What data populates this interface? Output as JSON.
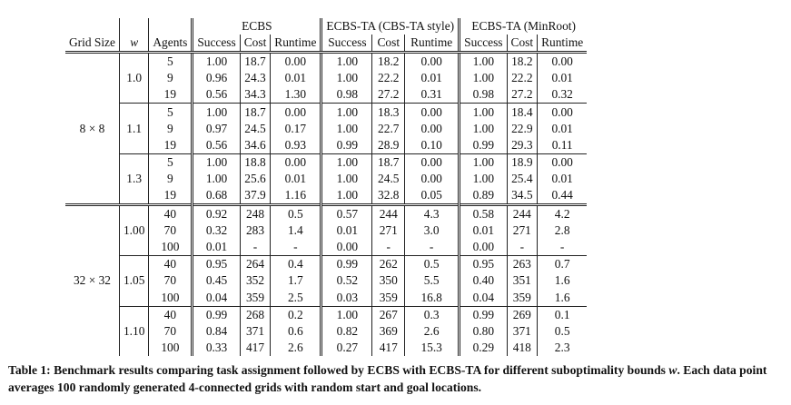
{
  "header": {
    "grid_size": "Grid Size",
    "w": "w",
    "agents": "Agents",
    "groups": [
      "ECBS",
      "ECBS-TA (CBS-TA style)",
      "ECBS-TA (MinRoot)"
    ],
    "metrics": [
      "Success",
      "Cost",
      "Runtime"
    ]
  },
  "blocks": [
    {
      "grid": "8 × 8",
      "wgroups": [
        {
          "w": "1.0",
          "rows": [
            {
              "agents": "5",
              "cells": [
                {
                  "v": "1.00",
                  "b": true
                },
                {
                  "v": "18.7",
                  "b": false
                },
                {
                  "v": "0.00",
                  "b": true
                },
                {
                  "v": "1.00",
                  "b": true
                },
                {
                  "v": "18.2",
                  "b": true
                },
                {
                  "v": "0.00",
                  "b": true
                },
                {
                  "v": "1.00",
                  "b": true
                },
                {
                  "v": "18.2",
                  "b": true
                },
                {
                  "v": "0.00",
                  "b": true
                }
              ]
            },
            {
              "agents": "9",
              "cells": [
                {
                  "v": "0.96",
                  "b": false
                },
                {
                  "v": "24.3",
                  "b": false
                },
                {
                  "v": "0.01",
                  "b": true
                },
                {
                  "v": "1.00",
                  "b": true
                },
                {
                  "v": "22.2",
                  "b": true
                },
                {
                  "v": "0.01",
                  "b": true
                },
                {
                  "v": "1.00",
                  "b": true
                },
                {
                  "v": "22.2",
                  "b": true
                },
                {
                  "v": "0.01",
                  "b": true
                }
              ]
            },
            {
              "agents": "19",
              "cells": [
                {
                  "v": "0.56",
                  "b": false
                },
                {
                  "v": "34.3",
                  "b": false
                },
                {
                  "v": "1.30",
                  "b": false
                },
                {
                  "v": "0.98",
                  "b": true
                },
                {
                  "v": "27.2",
                  "b": true
                },
                {
                  "v": "0.31",
                  "b": true
                },
                {
                  "v": "0.98",
                  "b": true
                },
                {
                  "v": "27.2",
                  "b": true
                },
                {
                  "v": "0.32",
                  "b": false
                }
              ]
            }
          ]
        },
        {
          "w": "1.1",
          "rows": [
            {
              "agents": "5",
              "cells": [
                {
                  "v": "1.00",
                  "b": true
                },
                {
                  "v": "18.7",
                  "b": false
                },
                {
                  "v": "0.00",
                  "b": true
                },
                {
                  "v": "1.00",
                  "b": true
                },
                {
                  "v": "18.3",
                  "b": true
                },
                {
                  "v": "0.00",
                  "b": true
                },
                {
                  "v": "1.00",
                  "b": true
                },
                {
                  "v": "18.4",
                  "b": false
                },
                {
                  "v": "0.00",
                  "b": true
                }
              ]
            },
            {
              "agents": "9",
              "cells": [
                {
                  "v": "0.97",
                  "b": false
                },
                {
                  "v": "24.5",
                  "b": false
                },
                {
                  "v": "0.17",
                  "b": false
                },
                {
                  "v": "1.00",
                  "b": true
                },
                {
                  "v": "22.7",
                  "b": true
                },
                {
                  "v": "0.00",
                  "b": true
                },
                {
                  "v": "1.00",
                  "b": true
                },
                {
                  "v": "22.9",
                  "b": false
                },
                {
                  "v": "0.01",
                  "b": false
                }
              ]
            },
            {
              "agents": "19",
              "cells": [
                {
                  "v": "0.56",
                  "b": false
                },
                {
                  "v": "34.6",
                  "b": false
                },
                {
                  "v": "0.93",
                  "b": false
                },
                {
                  "v": "0.99",
                  "b": true
                },
                {
                  "v": "28.9",
                  "b": true
                },
                {
                  "v": "0.10",
                  "b": true
                },
                {
                  "v": "0.99",
                  "b": true
                },
                {
                  "v": "29.3",
                  "b": false
                },
                {
                  "v": "0.11",
                  "b": false
                }
              ]
            }
          ]
        },
        {
          "w": "1.3",
          "rows": [
            {
              "agents": "5",
              "cells": [
                {
                  "v": "1.00",
                  "b": true
                },
                {
                  "v": "18.8",
                  "b": false
                },
                {
                  "v": "0.00",
                  "b": true
                },
                {
                  "v": "1.00",
                  "b": true
                },
                {
                  "v": "18.7",
                  "b": true
                },
                {
                  "v": "0.00",
                  "b": true
                },
                {
                  "v": "1.00",
                  "b": true
                },
                {
                  "v": "18.9",
                  "b": false
                },
                {
                  "v": "0.00",
                  "b": true
                }
              ]
            },
            {
              "agents": "9",
              "cells": [
                {
                  "v": "1.00",
                  "b": true
                },
                {
                  "v": "25.6",
                  "b": false
                },
                {
                  "v": "0.01",
                  "b": false
                },
                {
                  "v": "1.00",
                  "b": true
                },
                {
                  "v": "24.5",
                  "b": true
                },
                {
                  "v": "0.00",
                  "b": true
                },
                {
                  "v": "1.00",
                  "b": true
                },
                {
                  "v": "25.4",
                  "b": false
                },
                {
                  "v": "0.01",
                  "b": false
                }
              ]
            },
            {
              "agents": "19",
              "cells": [
                {
                  "v": "0.68",
                  "b": false
                },
                {
                  "v": "37.9",
                  "b": false
                },
                {
                  "v": "1.16",
                  "b": false
                },
                {
                  "v": "1.00",
                  "b": true
                },
                {
                  "v": "32.8",
                  "b": true
                },
                {
                  "v": "0.05",
                  "b": true
                },
                {
                  "v": "0.89",
                  "b": false
                },
                {
                  "v": "34.5",
                  "b": false
                },
                {
                  "v": "0.44",
                  "b": false
                }
              ]
            }
          ]
        }
      ]
    },
    {
      "grid": "32 × 32",
      "wgroups": [
        {
          "w": "1.00",
          "rows": [
            {
              "agents": "40",
              "cells": [
                {
                  "v": "0.92",
                  "b": true
                },
                {
                  "v": "248",
                  "b": false
                },
                {
                  "v": "0.5",
                  "b": true
                },
                {
                  "v": "0.57",
                  "b": false
                },
                {
                  "v": "244",
                  "b": true
                },
                {
                  "v": "4.3",
                  "b": false
                },
                {
                  "v": "0.58",
                  "b": false
                },
                {
                  "v": "244",
                  "b": true
                },
                {
                  "v": "4.2",
                  "b": false
                }
              ]
            },
            {
              "agents": "70",
              "cells": [
                {
                  "v": "0.32",
                  "b": true
                },
                {
                  "v": "283",
                  "b": false
                },
                {
                  "v": "1.4",
                  "b": true
                },
                {
                  "v": "0.01",
                  "b": false
                },
                {
                  "v": "271",
                  "b": true
                },
                {
                  "v": "3.0",
                  "b": false
                },
                {
                  "v": "0.01",
                  "b": false
                },
                {
                  "v": "271",
                  "b": true
                },
                {
                  "v": "2.8",
                  "b": false
                }
              ]
            },
            {
              "agents": "100",
              "cells": [
                {
                  "v": "0.01",
                  "b": true
                },
                {
                  "v": "-",
                  "b": false
                },
                {
                  "v": "-",
                  "b": false
                },
                {
                  "v": "0.00",
                  "b": false
                },
                {
                  "v": "-",
                  "b": false
                },
                {
                  "v": "-",
                  "b": false
                },
                {
                  "v": "0.00",
                  "b": false
                },
                {
                  "v": "-",
                  "b": false
                },
                {
                  "v": "-",
                  "b": false
                }
              ]
            }
          ]
        },
        {
          "w": "1.05",
          "rows": [
            {
              "agents": "40",
              "cells": [
                {
                  "v": "0.95",
                  "b": false
                },
                {
                  "v": "264",
                  "b": false
                },
                {
                  "v": "0.4",
                  "b": true
                },
                {
                  "v": "0.99",
                  "b": true
                },
                {
                  "v": "262",
                  "b": true
                },
                {
                  "v": "0.5",
                  "b": false
                },
                {
                  "v": "0.95",
                  "b": false
                },
                {
                  "v": "263",
                  "b": false
                },
                {
                  "v": "0.7",
                  "b": false
                }
              ]
            },
            {
              "agents": "70",
              "cells": [
                {
                  "v": "0.45",
                  "b": false
                },
                {
                  "v": "352",
                  "b": false
                },
                {
                  "v": "1.7",
                  "b": false
                },
                {
                  "v": "0.52",
                  "b": true
                },
                {
                  "v": "350",
                  "b": true
                },
                {
                  "v": "5.5",
                  "b": false
                },
                {
                  "v": "0.40",
                  "b": false
                },
                {
                  "v": "351",
                  "b": false
                },
                {
                  "v": "1.6",
                  "b": true
                }
              ]
            },
            {
              "agents": "100",
              "cells": [
                {
                  "v": "0.04",
                  "b": true
                },
                {
                  "v": "359",
                  "b": true
                },
                {
                  "v": "2.5",
                  "b": false
                },
                {
                  "v": "0.03",
                  "b": false
                },
                {
                  "v": "359",
                  "b": true
                },
                {
                  "v": "16.8",
                  "b": false
                },
                {
                  "v": "0.04",
                  "b": true
                },
                {
                  "v": "359",
                  "b": true
                },
                {
                  "v": "1.6",
                  "b": true
                }
              ]
            }
          ]
        },
        {
          "w": "1.10",
          "rows": [
            {
              "agents": "40",
              "cells": [
                {
                  "v": "0.99",
                  "b": false
                },
                {
                  "v": "268",
                  "b": false
                },
                {
                  "v": "0.2",
                  "b": false
                },
                {
                  "v": "1.00",
                  "b": true
                },
                {
                  "v": "267",
                  "b": true
                },
                {
                  "v": "0.3",
                  "b": false
                },
                {
                  "v": "0.99",
                  "b": false
                },
                {
                  "v": "269",
                  "b": false
                },
                {
                  "v": "0.1",
                  "b": true
                }
              ]
            },
            {
              "agents": "70",
              "cells": [
                {
                  "v": "0.84",
                  "b": true
                },
                {
                  "v": "371",
                  "b": false
                },
                {
                  "v": "0.6",
                  "b": false
                },
                {
                  "v": "0.82",
                  "b": false
                },
                {
                  "v": "369",
                  "b": true
                },
                {
                  "v": "2.6",
                  "b": false
                },
                {
                  "v": "0.80",
                  "b": false
                },
                {
                  "v": "371",
                  "b": false
                },
                {
                  "v": "0.5",
                  "b": true
                }
              ]
            },
            {
              "agents": "100",
              "cells": [
                {
                  "v": "0.33",
                  "b": true
                },
                {
                  "v": "417",
                  "b": true
                },
                {
                  "v": "2.6",
                  "b": false
                },
                {
                  "v": "0.27",
                  "b": false
                },
                {
                  "v": "417",
                  "b": true
                },
                {
                  "v": "15.3",
                  "b": false
                },
                {
                  "v": "0.29",
                  "b": false
                },
                {
                  "v": "418",
                  "b": false
                },
                {
                  "v": "2.3",
                  "b": true
                }
              ]
            }
          ]
        }
      ]
    }
  ],
  "caption": {
    "label": "Table 1: Benchmark results comparing task assignment followed by ECBS with ECBS-TA for different suboptimality bounds",
    "w": "w",
    "rest": ". Each data point averages 100 randomly generated 4-connected grids with random start and goal locations."
  }
}
